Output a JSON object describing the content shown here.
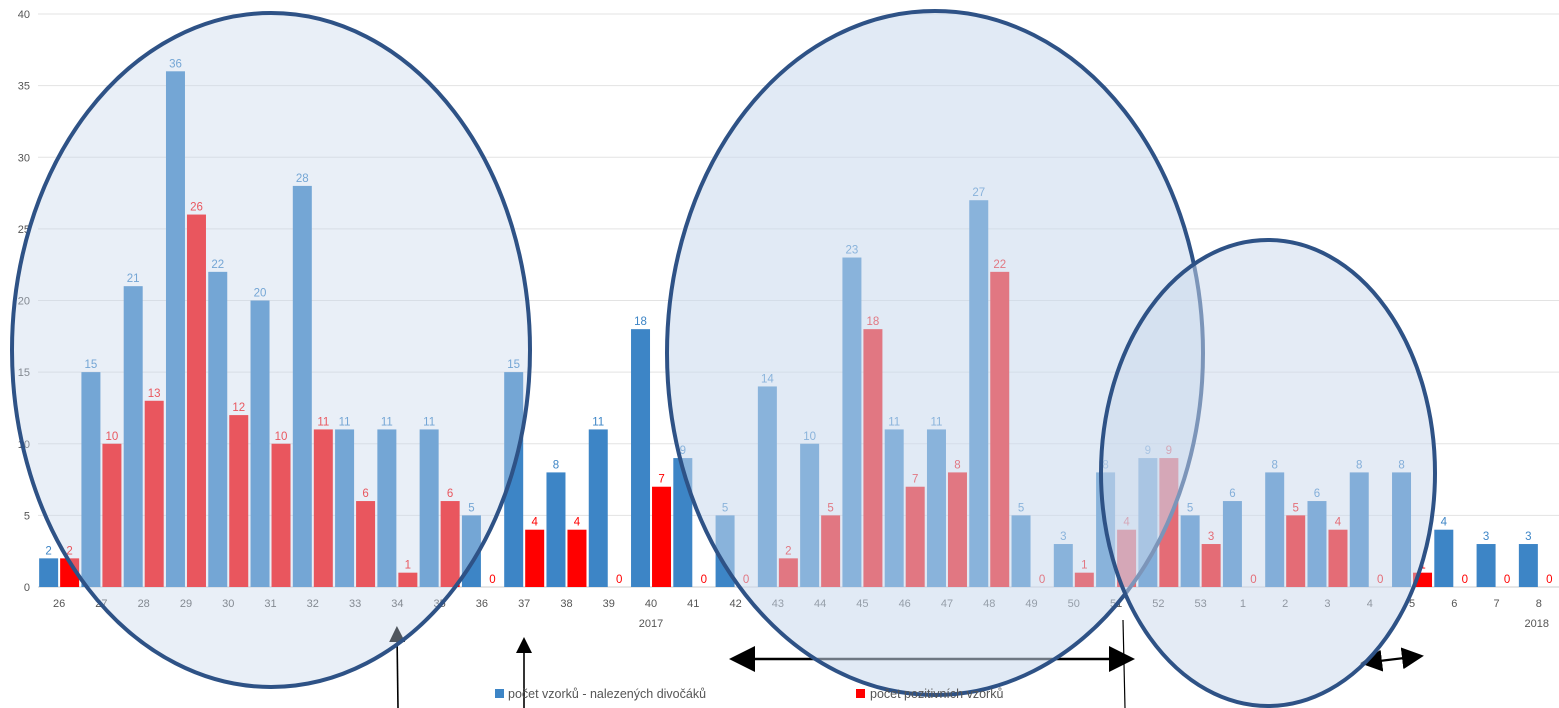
{
  "chart_data": {
    "type": "bar",
    "title": "",
    "xlabel": "",
    "ylabel": "",
    "ylim": [
      0,
      40
    ],
    "yticks": [
      0,
      5,
      10,
      15,
      20,
      25,
      30,
      35,
      40
    ],
    "grid": true,
    "legend_position": "bottom",
    "categories": [
      "26",
      "27",
      "28",
      "29",
      "30",
      "31",
      "32",
      "33",
      "34",
      "35",
      "36",
      "37",
      "38",
      "39",
      "40",
      "41",
      "42",
      "43",
      "44",
      "45",
      "46",
      "47",
      "48",
      "49",
      "50",
      "51",
      "52",
      "53",
      "1",
      "2",
      "3",
      "4",
      "5",
      "6",
      "7",
      "8"
    ],
    "year_labels": [
      {
        "category": "40",
        "text": "2017"
      },
      {
        "category": "8",
        "text": "2018"
      }
    ],
    "series": [
      {
        "name": "počet vzorků - nalezených divočáků",
        "color": "#3d85c6",
        "values": [
          2,
          15,
          21,
          36,
          22,
          20,
          28,
          11,
          11,
          11,
          5,
          15,
          8,
          11,
          18,
          9,
          5,
          14,
          10,
          23,
          11,
          11,
          27,
          5,
          3,
          8,
          9,
          5,
          6,
          8,
          6,
          8,
          8,
          4,
          3,
          3
        ]
      },
      {
        "name": "počet pozitivních vzorků",
        "color": "#ff0000",
        "values": [
          2,
          10,
          13,
          26,
          12,
          10,
          11,
          6,
          1,
          6,
          0,
          4,
          4,
          0,
          7,
          0,
          0,
          2,
          5,
          18,
          7,
          8,
          22,
          0,
          1,
          4,
          9,
          3,
          0,
          5,
          4,
          0,
          1,
          0,
          0,
          0
        ]
      }
    ],
    "annotations": {
      "highlight_color": "#c9d8ec",
      "outline_color": "#2e5286",
      "ellipses": 3,
      "arrows": 4
    }
  }
}
